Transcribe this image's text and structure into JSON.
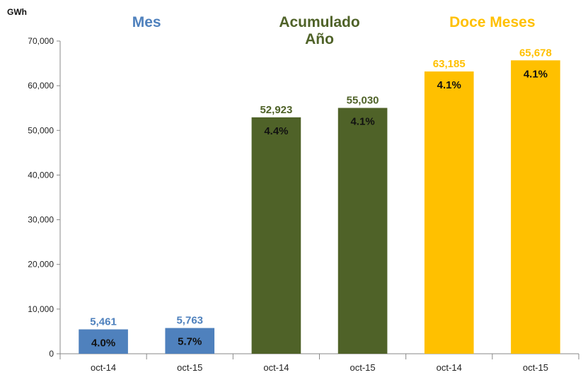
{
  "chart_data": {
    "type": "bar",
    "y_unit": "GWh",
    "ylim": [
      0,
      70000
    ],
    "yticks": [
      "0",
      "10,000",
      "20,000",
      "30,000",
      "40,000",
      "50,000",
      "60,000",
      "70,000"
    ],
    "grid": false,
    "groups": [
      {
        "title_lines": [
          "Mes"
        ],
        "color": "#4F81BD",
        "label_color": "#4F81BD",
        "bars": [
          {
            "category": "oct-14",
            "value": 5461,
            "value_label": "5,461",
            "change_label": "4.0%"
          },
          {
            "category": "oct-15",
            "value": 5763,
            "value_label": "5,763",
            "change_label": "5.7%"
          }
        ]
      },
      {
        "title_lines": [
          "Acumulado",
          "Año"
        ],
        "color": "#4F6228",
        "label_color": "#4F6228",
        "bars": [
          {
            "category": "oct-14",
            "value": 52923,
            "value_label": "52,923",
            "change_label": "4.4%"
          },
          {
            "category": "oct-15",
            "value": 55030,
            "value_label": "55,030",
            "change_label": "4.1%"
          }
        ]
      },
      {
        "title_lines": [
          "Doce Meses"
        ],
        "color": "#FFC000",
        "label_color": "#FFC000",
        "bars": [
          {
            "category": "oct-14",
            "value": 63185,
            "value_label": "63,185",
            "change_label": "4.1%"
          },
          {
            "category": "oct-15",
            "value": 65678,
            "value_label": "65,678",
            "change_label": "4.1%"
          }
        ]
      }
    ]
  }
}
